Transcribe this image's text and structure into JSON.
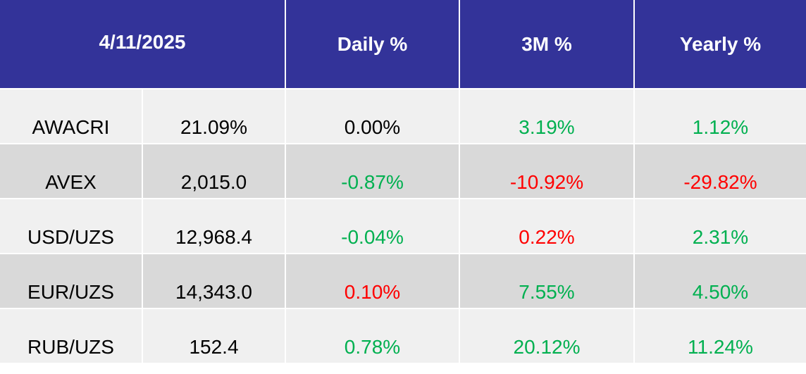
{
  "header": {
    "date": "4/11/2025",
    "col_daily": "Daily %",
    "col_3m": "3M %",
    "col_yearly": "Yearly %"
  },
  "colors": {
    "header_bg": "#333399",
    "positive": "#00b050",
    "negative": "#ff0000",
    "row_light": "#f0f0f0",
    "row_dark": "#d9d9d9"
  },
  "rows": [
    {
      "name": "AWACRI",
      "value": "21.09%",
      "daily": "0.00%",
      "m3": "3.19%",
      "yearly": "1.12%"
    },
    {
      "name": "AVEX",
      "value": "2,015.0",
      "daily": "-0.87%",
      "m3": "-10.92%",
      "yearly": "-29.82%"
    },
    {
      "name": "USD/UZS",
      "value": "12,968.4",
      "daily": "-0.04%",
      "m3": "0.22%",
      "yearly": "2.31%"
    },
    {
      "name": "EUR/UZS",
      "value": "14,343.0",
      "daily": "0.10%",
      "m3": "7.55%",
      "yearly": "4.50%"
    },
    {
      "name": "RUB/UZS",
      "value": "152.4",
      "daily": "0.78%",
      "m3": "20.12%",
      "yearly": "11.24%"
    }
  ]
}
